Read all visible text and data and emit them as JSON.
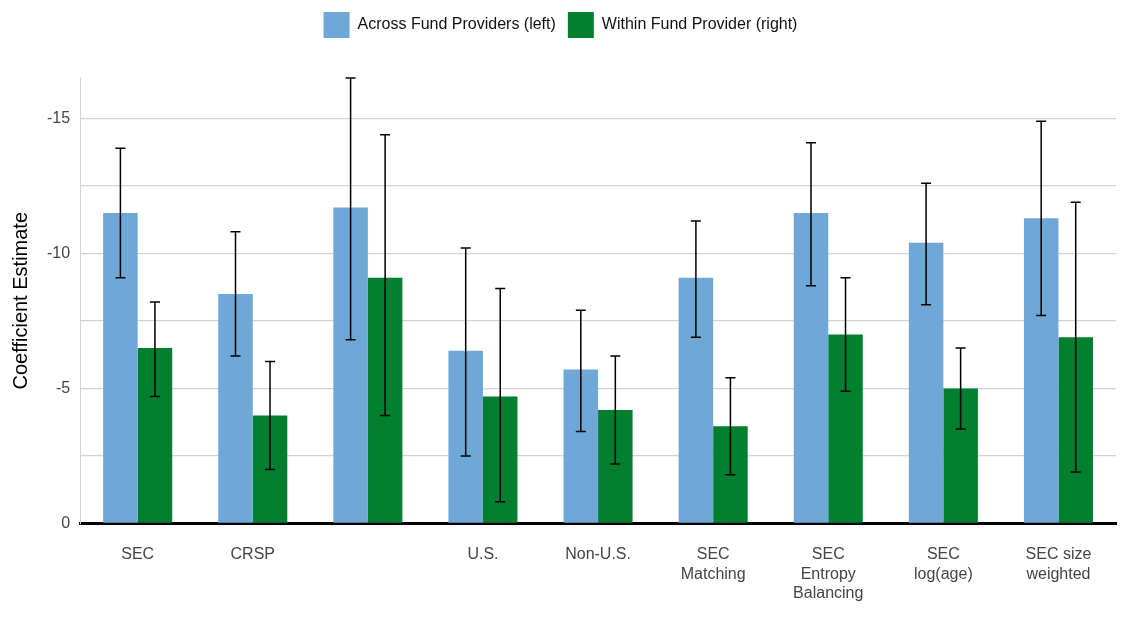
{
  "chart_data": {
    "type": "bar",
    "ylabel": "Coefficient Estimate",
    "categories": [
      "SEC",
      "CRSP",
      null,
      "U.S.",
      "Non-U.S.",
      "SEC Matching",
      "SEC Entropy Balancing",
      "SEC log(age)",
      "SEC size weighted"
    ],
    "series": [
      {
        "name": "Across Fund Providers (left)",
        "color": "#6fa8d6",
        "values": [
          -11.5,
          -8.5,
          -11.7,
          -6.4,
          -5.7,
          -9.1,
          -11.5,
          -10.4,
          -11.3
        ],
        "errors": [
          [
            -13.9,
            -9.1
          ],
          [
            -10.8,
            -6.2
          ],
          [
            -16.5,
            -6.8
          ],
          [
            -10.2,
            -2.5
          ],
          [
            -7.9,
            -3.4
          ],
          [
            -11.2,
            -6.9
          ],
          [
            -14.1,
            -8.8
          ],
          [
            -12.6,
            -8.1
          ],
          [
            -14.9,
            -7.7
          ]
        ]
      },
      {
        "name": "Within Fund Provider (right)",
        "color": "#007f2f",
        "values": [
          -6.5,
          -4.0,
          -9.1,
          -4.7,
          -4.2,
          -3.6,
          -7.0,
          -5.0,
          -6.9
        ],
        "errors": [
          [
            -8.2,
            -4.7
          ],
          [
            -6.0,
            -2.0
          ],
          [
            -14.4,
            -4.0
          ],
          [
            -8.7,
            -0.8
          ],
          [
            -6.2,
            -2.2
          ],
          [
            -5.4,
            -1.8
          ],
          [
            -9.1,
            -4.9
          ],
          [
            -6.5,
            -3.5
          ],
          [
            -11.9,
            -1.9
          ]
        ]
      }
    ],
    "yticks": [
      0,
      -5,
      -10,
      -15,
      {
        "value": -2.5,
        "label": null
      },
      {
        "value": -7.5,
        "label": null
      },
      {
        "value": -12.5,
        "label": null
      }
    ],
    "ylim": [
      0,
      -16.5
    ],
    "grid": "y",
    "legend": "top"
  }
}
